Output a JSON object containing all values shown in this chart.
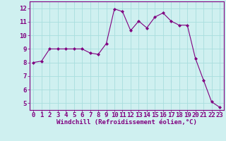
{
  "x": [
    0,
    1,
    2,
    3,
    4,
    5,
    6,
    7,
    8,
    9,
    10,
    11,
    12,
    13,
    14,
    15,
    16,
    17,
    18,
    19,
    20,
    21,
    22,
    23
  ],
  "y": [
    8.0,
    8.1,
    9.0,
    9.0,
    9.0,
    9.0,
    9.0,
    8.7,
    8.6,
    9.4,
    11.95,
    11.75,
    10.35,
    11.05,
    10.55,
    11.35,
    11.65,
    11.05,
    10.75,
    10.75,
    8.3,
    6.7,
    5.1,
    4.7
  ],
  "line_color": "#800080",
  "marker": "D",
  "marker_size": 2,
  "bg_color": "#cff0f0",
  "grid_color": "#a8dede",
  "xlabel": "Windchill (Refroidissement éolien,°C)",
  "ylim": [
    4.5,
    12.5
  ],
  "xlim": [
    -0.5,
    23.5
  ],
  "yticks": [
    5,
    6,
    7,
    8,
    9,
    10,
    11,
    12
  ],
  "xticks": [
    0,
    1,
    2,
    3,
    4,
    5,
    6,
    7,
    8,
    9,
    10,
    11,
    12,
    13,
    14,
    15,
    16,
    17,
    18,
    19,
    20,
    21,
    22,
    23
  ],
  "xlabel_color": "#800080",
  "tick_color": "#800080",
  "axis_color": "#800080",
  "xlabel_fontsize": 6.5,
  "tick_fontsize": 6.5
}
